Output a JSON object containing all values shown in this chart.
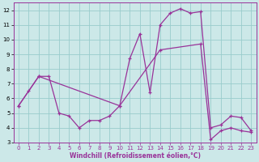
{
  "xlabel": "Windchill (Refroidissement éolien,°C)",
  "background_color": "#cce8e8",
  "line_color": "#993399",
  "grid_color": "#99cccc",
  "xlim": [
    -0.5,
    23.5
  ],
  "ylim": [
    3,
    12.5
  ],
  "yticks": [
    3,
    4,
    5,
    6,
    7,
    8,
    9,
    10,
    11,
    12
  ],
  "xticks": [
    0,
    1,
    2,
    3,
    4,
    5,
    6,
    7,
    8,
    9,
    10,
    11,
    12,
    13,
    14,
    15,
    16,
    17,
    18,
    19,
    20,
    21,
    22,
    23
  ],
  "line1_x": [
    0,
    1,
    2,
    3,
    4,
    5,
    6,
    7,
    8,
    9,
    10,
    11,
    12,
    13,
    14,
    15,
    16,
    17,
    18,
    19,
    20,
    21,
    22,
    23
  ],
  "line1_y": [
    5.5,
    6.5,
    7.5,
    7.5,
    5.0,
    4.8,
    4.0,
    4.5,
    4.5,
    4.8,
    5.5,
    8.7,
    10.4,
    6.4,
    11.0,
    11.8,
    12.1,
    11.8,
    11.9,
    4.0,
    4.2,
    4.8,
    4.7,
    3.8
  ],
  "line2_x": [
    0,
    2,
    10,
    14,
    18,
    19,
    20,
    21,
    22,
    23
  ],
  "line2_y": [
    5.5,
    7.5,
    5.5,
    9.3,
    9.7,
    3.2,
    3.8,
    4.0,
    3.8,
    3.7
  ]
}
